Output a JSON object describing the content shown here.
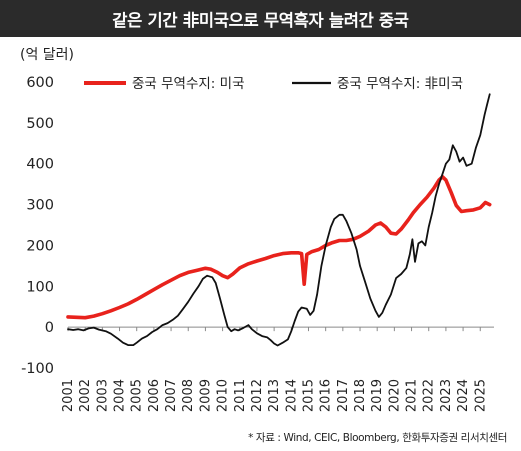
{
  "header": {
    "title": "같은 기간 非미국으로 무역흑자 늘려간 중국"
  },
  "source": "* 자료 : Wind, CEIC, Bloomberg, 한화투자증권 리서치센터",
  "colors": {
    "us_series": "#e8221c",
    "non_us_series": "#111111",
    "title_bg": "#2b2b2b"
  },
  "chart_data": {
    "type": "line",
    "unit_label": "(억 달러)",
    "ylim": [
      -100,
      600
    ],
    "yticks": [
      -100,
      0,
      100,
      200,
      300,
      400,
      500,
      600
    ],
    "xlim": [
      2001,
      2025.8
    ],
    "xticks": [
      "2001",
      "2002",
      "2003",
      "2004",
      "2005",
      "2006",
      "2007",
      "2008",
      "2009",
      "2010",
      "2011",
      "2012",
      "2013",
      "2014",
      "2015",
      "2016",
      "2017",
      "2018",
      "2019",
      "2020",
      "2021",
      "2022",
      "2023",
      "2024",
      "2025"
    ],
    "grid": false,
    "legend_position": "top",
    "series": [
      {
        "name": "중국 무역수지: 미국",
        "color": "#e8221c",
        "points": [
          [
            2001.0,
            25
          ],
          [
            2001.5,
            24
          ],
          [
            2002.0,
            23
          ],
          [
            2002.5,
            27
          ],
          [
            2003.0,
            33
          ],
          [
            2003.5,
            40
          ],
          [
            2004.0,
            48
          ],
          [
            2004.5,
            57
          ],
          [
            2005.0,
            68
          ],
          [
            2005.5,
            80
          ],
          [
            2006.0,
            92
          ],
          [
            2006.5,
            104
          ],
          [
            2007.0,
            115
          ],
          [
            2007.5,
            126
          ],
          [
            2008.0,
            134
          ],
          [
            2008.5,
            139
          ],
          [
            2009.0,
            144
          ],
          [
            2009.3,
            142
          ],
          [
            2009.7,
            134
          ],
          [
            2010.0,
            126
          ],
          [
            2010.3,
            121
          ],
          [
            2010.6,
            130
          ],
          [
            2011.0,
            145
          ],
          [
            2011.5,
            155
          ],
          [
            2012.0,
            162
          ],
          [
            2012.5,
            168
          ],
          [
            2013.0,
            175
          ],
          [
            2013.5,
            180
          ],
          [
            2014.0,
            182
          ],
          [
            2014.4,
            182
          ],
          [
            2014.6,
            180
          ],
          [
            2014.75,
            105
          ],
          [
            2014.9,
            178
          ],
          [
            2015.2,
            185
          ],
          [
            2015.6,
            190
          ],
          [
            2016.0,
            200
          ],
          [
            2016.4,
            207
          ],
          [
            2016.8,
            212
          ],
          [
            2017.2,
            212
          ],
          [
            2017.6,
            215
          ],
          [
            2018.0,
            222
          ],
          [
            2018.5,
            235
          ],
          [
            2018.9,
            250
          ],
          [
            2019.2,
            255
          ],
          [
            2019.5,
            245
          ],
          [
            2019.8,
            230
          ],
          [
            2020.1,
            228
          ],
          [
            2020.4,
            240
          ],
          [
            2020.8,
            262
          ],
          [
            2021.1,
            280
          ],
          [
            2021.5,
            300
          ],
          [
            2021.9,
            318
          ],
          [
            2022.3,
            340
          ],
          [
            2022.6,
            360
          ],
          [
            2022.8,
            368
          ],
          [
            2023.0,
            360
          ],
          [
            2023.3,
            330
          ],
          [
            2023.6,
            298
          ],
          [
            2023.9,
            283
          ],
          [
            2024.2,
            285
          ],
          [
            2024.6,
            287
          ],
          [
            2025.0,
            292
          ],
          [
            2025.3,
            305
          ],
          [
            2025.55,
            300
          ]
        ]
      },
      {
        "name": "중국 무역수지: 非미국",
        "color": "#111111",
        "points": [
          [
            2001.0,
            -5
          ],
          [
            2001.3,
            -7
          ],
          [
            2001.6,
            -5
          ],
          [
            2001.9,
            -8
          ],
          [
            2002.2,
            -3
          ],
          [
            2002.5,
            -1
          ],
          [
            2002.8,
            -6
          ],
          [
            2003.2,
            -10
          ],
          [
            2003.5,
            -16
          ],
          [
            2003.9,
            -28
          ],
          [
            2004.2,
            -38
          ],
          [
            2004.5,
            -44
          ],
          [
            2004.8,
            -44
          ],
          [
            2005.0,
            -38
          ],
          [
            2005.3,
            -28
          ],
          [
            2005.6,
            -22
          ],
          [
            2005.9,
            -12
          ],
          [
            2006.2,
            -5
          ],
          [
            2006.5,
            5
          ],
          [
            2006.8,
            10
          ],
          [
            2007.1,
            18
          ],
          [
            2007.4,
            28
          ],
          [
            2007.7,
            45
          ],
          [
            2008.0,
            62
          ],
          [
            2008.3,
            82
          ],
          [
            2008.6,
            100
          ],
          [
            2008.85,
            118
          ],
          [
            2009.1,
            126
          ],
          [
            2009.4,
            122
          ],
          [
            2009.6,
            108
          ],
          [
            2009.85,
            70
          ],
          [
            2010.1,
            30
          ],
          [
            2010.3,
            0
          ],
          [
            2010.5,
            -10
          ],
          [
            2010.7,
            -5
          ],
          [
            2010.9,
            -8
          ],
          [
            2011.2,
            -2
          ],
          [
            2011.5,
            5
          ],
          [
            2011.7,
            -5
          ],
          [
            2012.0,
            -15
          ],
          [
            2012.3,
            -22
          ],
          [
            2012.6,
            -25
          ],
          [
            2012.8,
            -32
          ],
          [
            2013.0,
            -40
          ],
          [
            2013.2,
            -45
          ],
          [
            2013.5,
            -38
          ],
          [
            2013.8,
            -30
          ],
          [
            2014.0,
            -10
          ],
          [
            2014.2,
            15
          ],
          [
            2014.4,
            38
          ],
          [
            2014.6,
            48
          ],
          [
            2014.9,
            45
          ],
          [
            2015.1,
            30
          ],
          [
            2015.3,
            40
          ],
          [
            2015.5,
            80
          ],
          [
            2015.75,
            150
          ],
          [
            2016.0,
            200
          ],
          [
            2016.3,
            245
          ],
          [
            2016.5,
            265
          ],
          [
            2016.8,
            275
          ],
          [
            2017.0,
            275
          ],
          [
            2017.2,
            260
          ],
          [
            2017.5,
            230
          ],
          [
            2017.8,
            190
          ],
          [
            2018.0,
            150
          ],
          [
            2018.3,
            110
          ],
          [
            2018.6,
            70
          ],
          [
            2018.9,
            40
          ],
          [
            2019.1,
            25
          ],
          [
            2019.3,
            35
          ],
          [
            2019.5,
            55
          ],
          [
            2019.8,
            80
          ],
          [
            2020.1,
            120
          ],
          [
            2020.4,
            130
          ],
          [
            2020.7,
            145
          ],
          [
            2020.9,
            178
          ],
          [
            2021.05,
            215
          ],
          [
            2021.2,
            160
          ],
          [
            2021.4,
            205
          ],
          [
            2021.6,
            210
          ],
          [
            2021.8,
            200
          ],
          [
            2022.0,
            245
          ],
          [
            2022.2,
            280
          ],
          [
            2022.4,
            320
          ],
          [
            2022.6,
            350
          ],
          [
            2022.8,
            375
          ],
          [
            2023.0,
            400
          ],
          [
            2023.2,
            410
          ],
          [
            2023.4,
            445
          ],
          [
            2023.6,
            430
          ],
          [
            2023.8,
            405
          ],
          [
            2024.0,
            415
          ],
          [
            2024.2,
            395
          ],
          [
            2024.5,
            400
          ],
          [
            2024.75,
            440
          ],
          [
            2025.0,
            470
          ],
          [
            2025.25,
            520
          ],
          [
            2025.4,
            545
          ],
          [
            2025.55,
            570
          ]
        ]
      }
    ]
  }
}
